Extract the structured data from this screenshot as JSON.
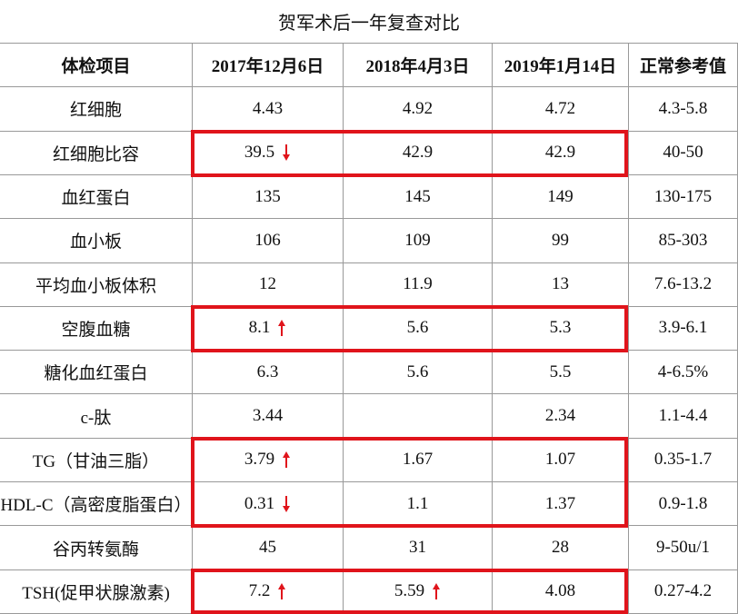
{
  "title": "贺军术后一年复查对比",
  "table": {
    "header": [
      "体检项目",
      "2017年12月6日",
      "2018年4月3日",
      "2019年1月14日",
      "正常参考值"
    ],
    "rows": [
      [
        "红细胞",
        "4.43",
        "4.92",
        "4.72",
        "4.3-5.8"
      ],
      [
        "红细胞比容",
        "39.5",
        "42.9",
        "42.9",
        "40-50"
      ],
      [
        "血红蛋白",
        "135",
        "145",
        "149",
        "130-175"
      ],
      [
        "血小板",
        "106",
        "109",
        "99",
        "85-303"
      ],
      [
        "平均血小板体积",
        "12",
        "11.9",
        "13",
        "7.6-13.2"
      ],
      [
        "空腹血糖",
        "8.1",
        "5.6",
        "5.3",
        "3.9-6.1"
      ],
      [
        "糖化血红蛋白",
        "6.3",
        "5.6",
        "5.5",
        "4-6.5%"
      ],
      [
        "c-肽",
        "3.44",
        null,
        "2.34",
        "1.1-4.4"
      ],
      [
        "TG（甘油三脂）",
        "3.79",
        "1.67",
        "1.07",
        "0.35-1.7"
      ],
      [
        "HDL-C（高密度脂蛋白）",
        "0.31",
        "1.1",
        "1.37",
        "0.9-1.8"
      ],
      [
        "谷丙转氨酶",
        "45",
        "31",
        "28",
        "9-50u/1"
      ],
      [
        "TSH(促甲状腺激素)",
        "7.2",
        "5.59",
        "4.08",
        "0.27-4.2"
      ]
    ]
  }
}
